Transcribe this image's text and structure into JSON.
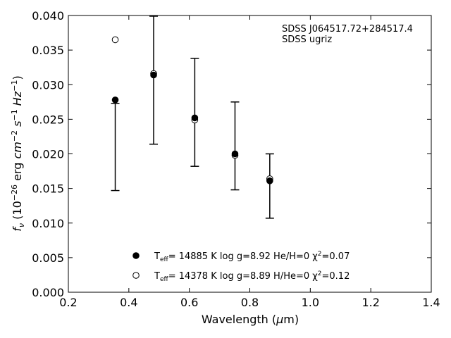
{
  "chart_data": {
    "type": "scatter",
    "annotation": [
      "SDSS J064517.72+284517.4",
      "SDSS ugriz"
    ],
    "xlabel": "Wavelength (μm)",
    "ylabel": "f_ν (10^-26 erg cm^-2 s^-1 Hz^-1)",
    "xlim": [
      0.2,
      1.4
    ],
    "ylim": [
      0.0,
      0.04
    ],
    "xticks": [
      "0.2",
      "0.4",
      "0.6",
      "0.8",
      "1.0",
      "1.2",
      "1.4"
    ],
    "yticks": [
      "0.000",
      "0.005",
      "0.010",
      "0.015",
      "0.020",
      "0.025",
      "0.030",
      "0.035",
      "0.040"
    ],
    "grid": false,
    "legend_position": "bottom-center",
    "observed_errorbars": [
      {
        "x": 0.355,
        "low": 0.0147,
        "high": 0.0273
      },
      {
        "x": 0.482,
        "low": 0.0214,
        "high": 0.0399
      },
      {
        "x": 0.618,
        "low": 0.0182,
        "high": 0.0338
      },
      {
        "x": 0.751,
        "low": 0.0148,
        "high": 0.0275
      },
      {
        "x": 0.866,
        "low": 0.0107,
        "high": 0.02
      }
    ],
    "series": [
      {
        "marker": "filled-circle",
        "label_parts": {
          "pre": "T",
          "sub": "eff",
          "main": "= 14885 K  log g=8.92  He/H=0  χ",
          "sup": "2",
          "post": "=0.07"
        },
        "x": [
          0.355,
          0.482,
          0.618,
          0.751,
          0.866
        ],
        "y": [
          0.0278,
          0.0314,
          0.0252,
          0.02,
          0.0161
        ]
      },
      {
        "marker": "open-circle",
        "label_parts": {
          "pre": "T",
          "sub": "eff",
          "main": "= 14378 K  log g=8.89  H/He=0  χ",
          "sup": "2",
          "post": "=0.12"
        },
        "x": [
          0.355,
          0.482,
          0.618,
          0.751,
          0.866
        ],
        "y": [
          0.0365,
          0.0316,
          0.0249,
          0.0198,
          0.0164
        ]
      }
    ]
  }
}
